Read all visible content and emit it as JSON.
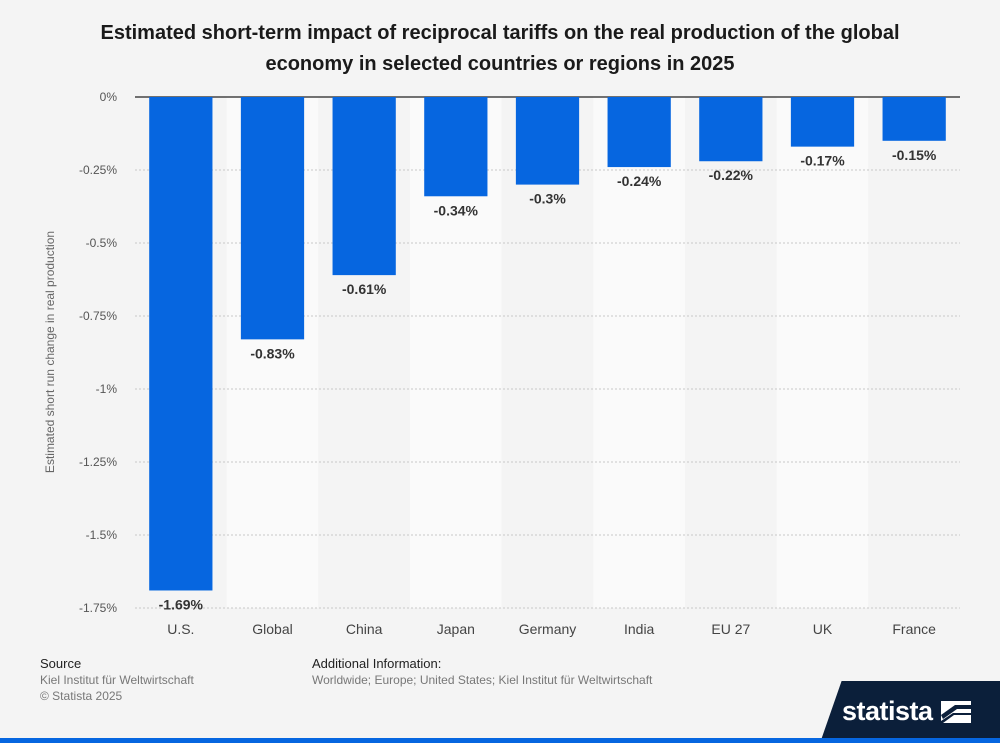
{
  "chart_data": {
    "type": "bar",
    "title": "Estimated short-term impact of reciprocal tariffs on the real production of the global economy in selected countries or regions in 2025",
    "categories": [
      "U.S.",
      "Global",
      "China",
      "Japan",
      "Germany",
      "India",
      "EU 27",
      "UK",
      "France"
    ],
    "values": [
      -1.69,
      -0.83,
      -0.61,
      -0.34,
      -0.3,
      -0.24,
      -0.22,
      -0.17,
      -0.15
    ],
    "value_labels": [
      "-1.69%",
      "-0.83%",
      "-0.61%",
      "-0.34%",
      "-0.3%",
      "-0.24%",
      "-0.22%",
      "-0.17%",
      "-0.15%"
    ],
    "xlabel": "",
    "ylabel": "Estimated short run change in real production",
    "ylim": [
      -1.75,
      0
    ],
    "yticks": [
      0,
      -0.25,
      -0.5,
      -0.75,
      -1,
      -1.25,
      -1.5,
      -1.75
    ],
    "ytick_labels": [
      "0%",
      "-0.25%",
      "-0.5%",
      "-0.75%",
      "-1%",
      "-1.25%",
      "-1.5%",
      "-1.75%"
    ],
    "bar_color": "#0666e0",
    "grid": true
  },
  "footer": {
    "source_heading": "Source",
    "source_line1": "Kiel Institut für Weltwirtschaft",
    "source_line2": "© Statista 2025",
    "info_heading": "Additional Information:",
    "info_line1": "Worldwide; Europe; United States; Kiel Institut für Weltwirtschaft"
  },
  "brand": {
    "name": "statista"
  }
}
